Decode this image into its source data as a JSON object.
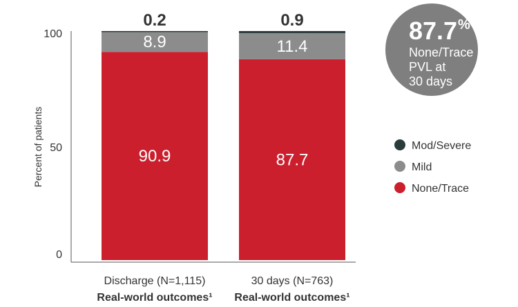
{
  "chart_data": {
    "type": "bar",
    "stacked": true,
    "ylabel": "Percent of patients",
    "ylim": [
      0,
      100
    ],
    "yticks": [
      "0",
      "50",
      "100"
    ],
    "categories": [
      {
        "line1": "Discharge (N=1,115)",
        "line2": "Real-world outcomes¹"
      },
      {
        "line1": "30 days (N=763)",
        "line2": "Real-world outcomes¹"
      }
    ],
    "series": [
      {
        "name": "None/Trace",
        "color": "#cc1f2e",
        "values": [
          90.9,
          87.7
        ],
        "labels": [
          "90.9",
          "87.7"
        ]
      },
      {
        "name": "Mild",
        "color": "#8c8c8c",
        "values": [
          8.9,
          11.4
        ],
        "labels": [
          "8.9",
          "11.4"
        ]
      },
      {
        "name": "Mod/Severe",
        "color": "#2a3b3b",
        "values": [
          0.2,
          0.9
        ],
        "labels": [
          "0.2",
          "0.9"
        ]
      }
    ],
    "legend": [
      {
        "name": "Mod/Severe",
        "color": "#2a3b3b"
      },
      {
        "name": "Mild",
        "color": "#8c8c8c"
      },
      {
        "name": "None/Trace",
        "color": "#cc1f2e"
      }
    ],
    "callout": {
      "value": "87.7",
      "unit": "%",
      "lines": [
        "None/Trace",
        "PVL at",
        "30 days"
      ],
      "color": "#7f7f7f"
    }
  }
}
